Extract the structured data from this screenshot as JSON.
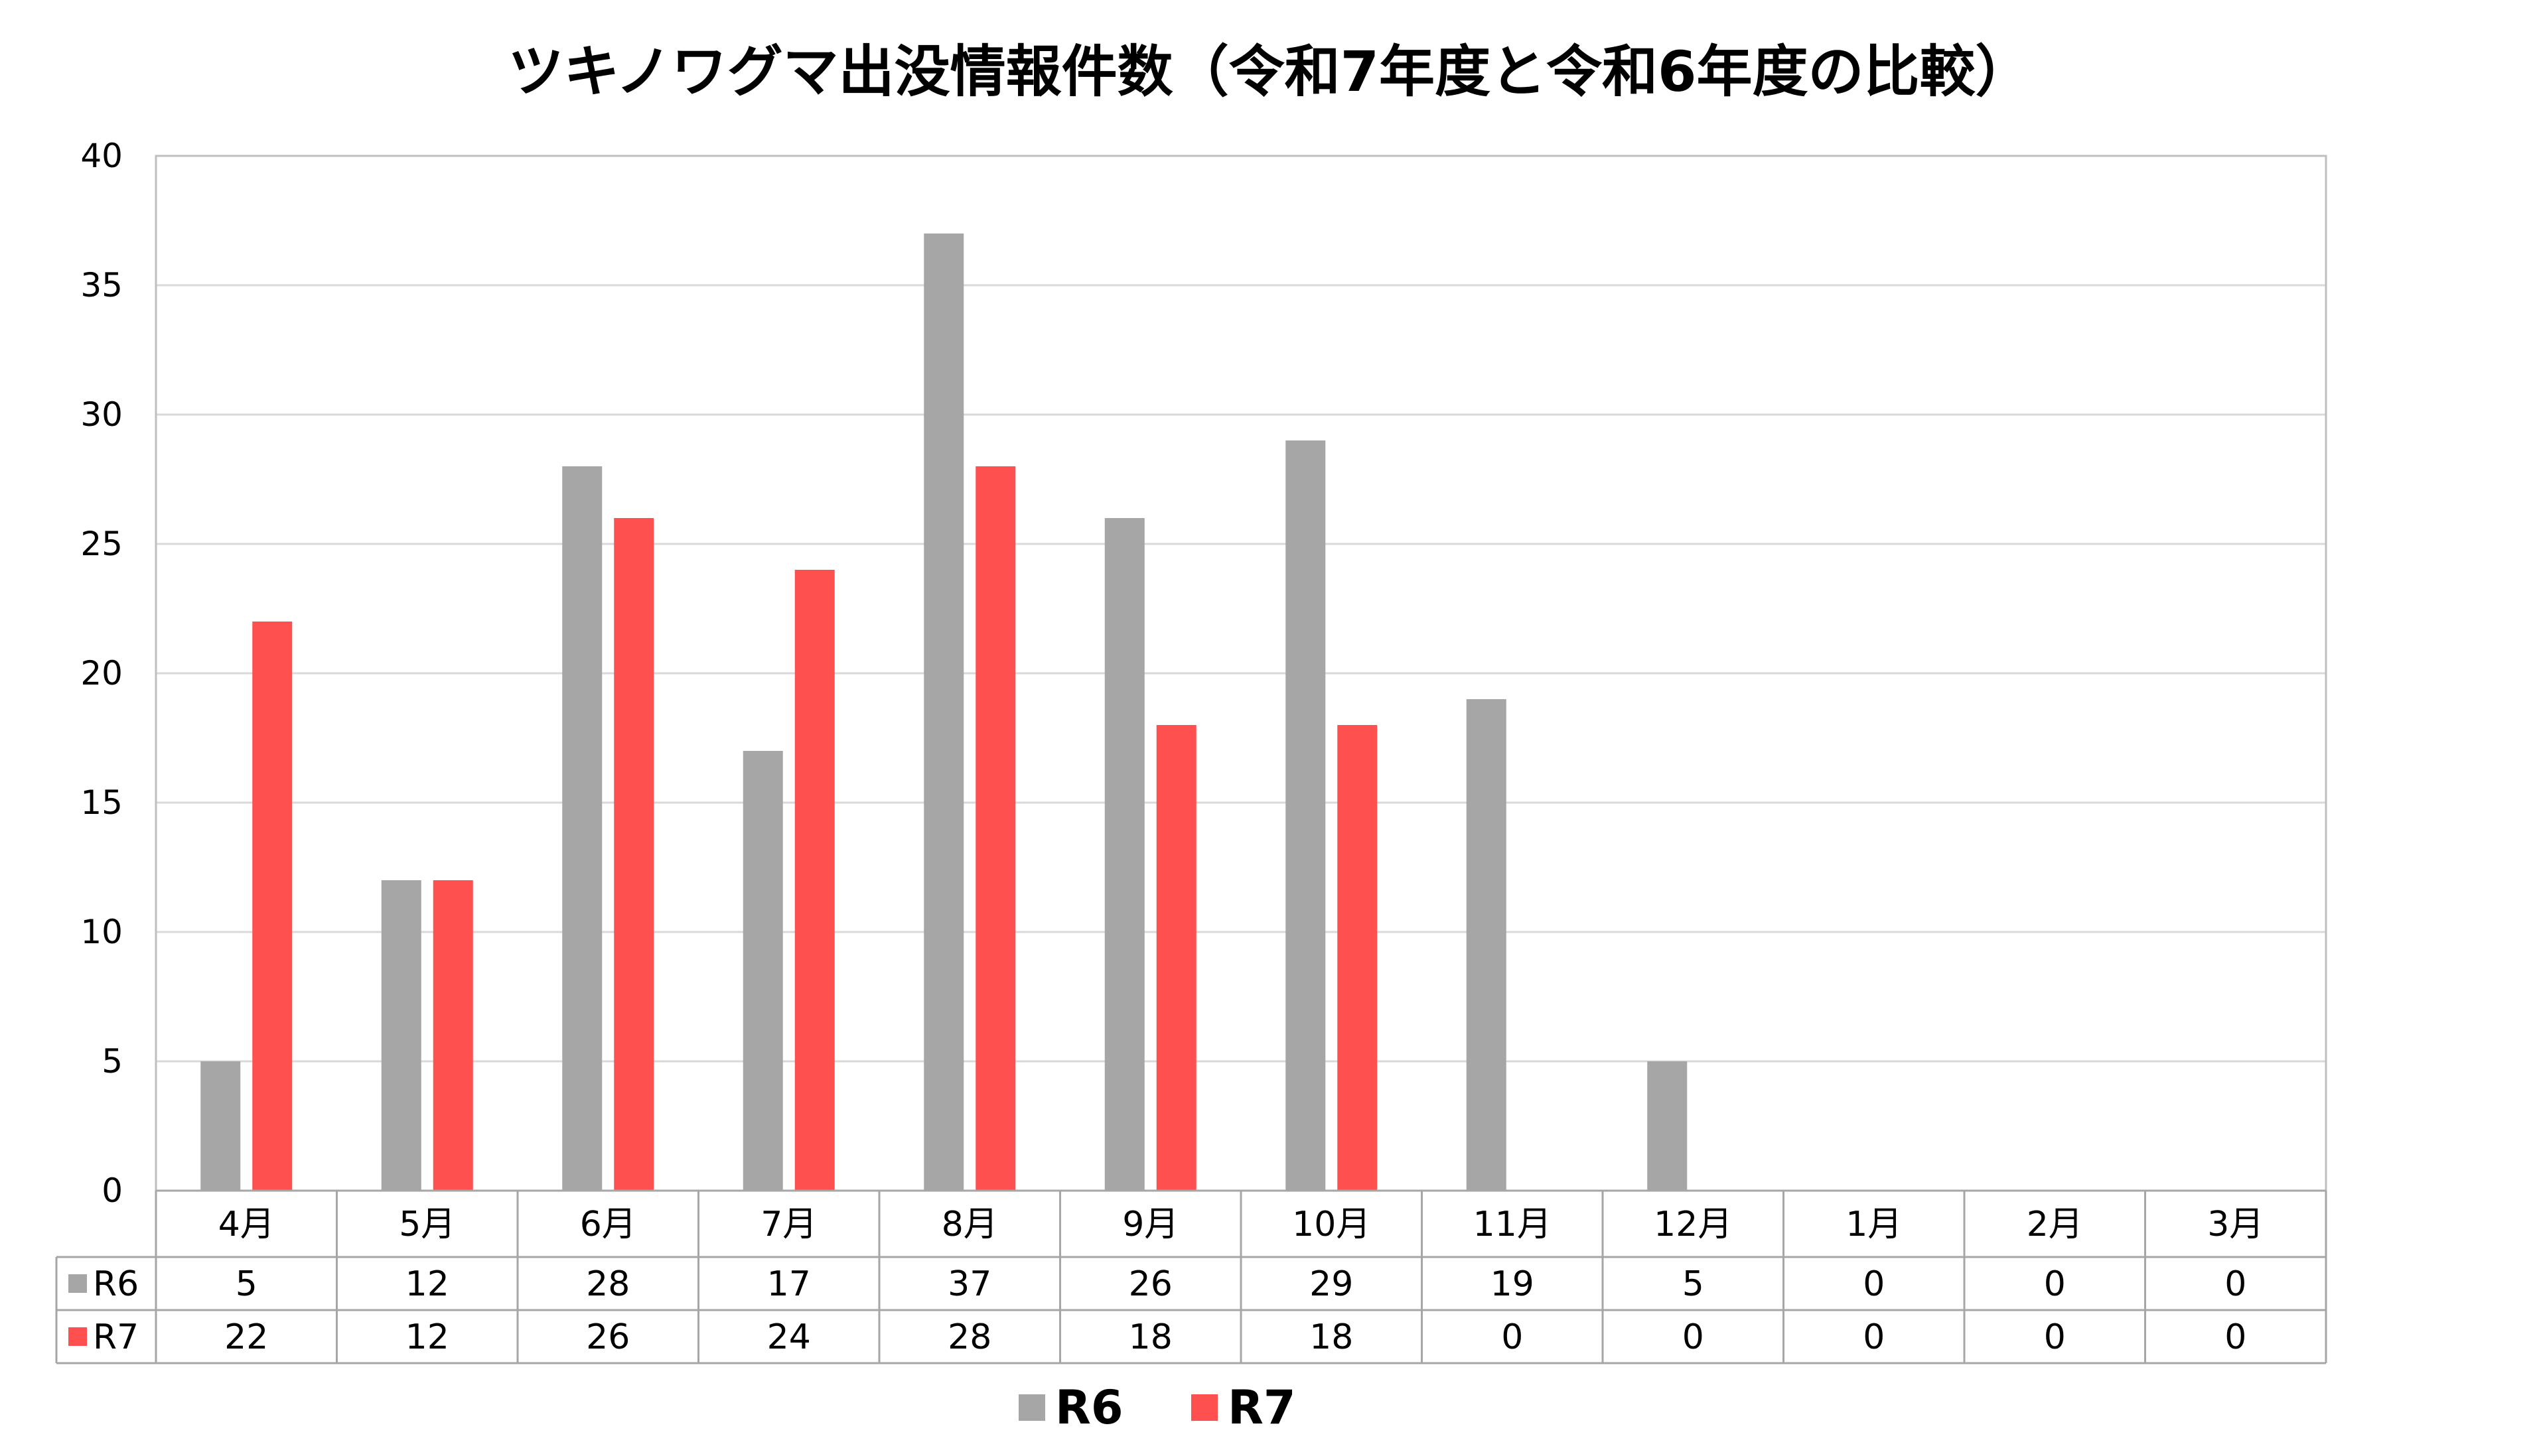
{
  "chart_data": {
    "type": "bar",
    "title": "ツキノワグマ出没情報件数（令和7年度と令和6年度の比較）",
    "xlabel": "",
    "ylabel": "",
    "categories": [
      "4月",
      "5月",
      "6月",
      "7月",
      "8月",
      "9月",
      "10月",
      "11月",
      "12月",
      "1月",
      "2月",
      "3月"
    ],
    "series": [
      {
        "name": "R6",
        "color": "#a6a6a6",
        "values": [
          5,
          12,
          28,
          17,
          37,
          26,
          29,
          19,
          5,
          0,
          0,
          0
        ]
      },
      {
        "name": "R7",
        "color": "#ff5050",
        "values": [
          22,
          12,
          26,
          24,
          28,
          18,
          18,
          null,
          null,
          null,
          null,
          null
        ]
      }
    ],
    "data_table": [
      {
        "name": "R6",
        "cells": [
          "5",
          "12",
          "28",
          "17",
          "37",
          "26",
          "29",
          "19",
          "5",
          "0",
          "0",
          "0"
        ]
      },
      {
        "name": "R7",
        "cells": [
          "22",
          "12",
          "26",
          "24",
          "28",
          "18",
          "18",
          "0",
          "0",
          "0",
          "0",
          "0"
        ]
      }
    ],
    "ylim": [
      0,
      40
    ],
    "yticks": [
      0,
      5,
      10,
      15,
      20,
      25,
      30,
      35,
      40
    ],
    "grid": true,
    "legend": "bottom"
  }
}
